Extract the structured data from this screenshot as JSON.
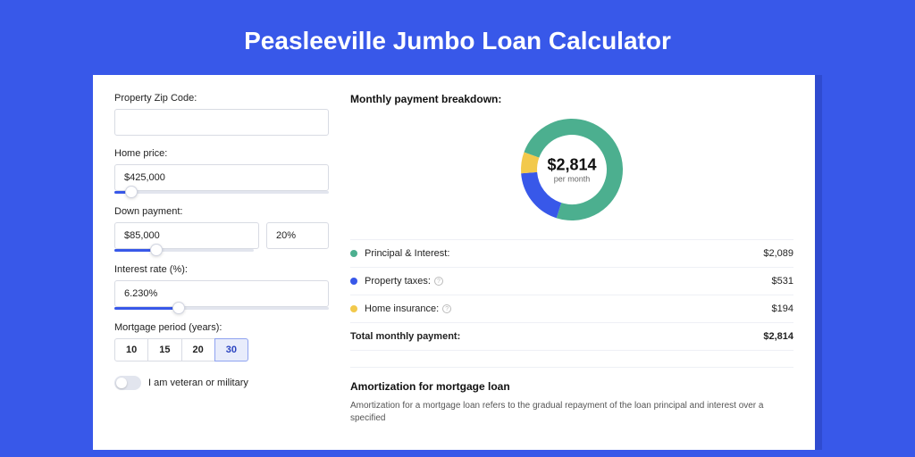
{
  "title": "Peasleeville Jumbo Loan Calculator",
  "colors": {
    "page_bg": "#3858e9",
    "card_shadow": "#2f4bd0",
    "accent": "#3858e9",
    "principal": "#4caf8f",
    "tax": "#3858e9",
    "insurance": "#f2c94c"
  },
  "form": {
    "zip": {
      "label": "Property Zip Code:",
      "value": ""
    },
    "home_price": {
      "label": "Home price:",
      "value": "$425,000",
      "slider_pct": 8
    },
    "down_payment": {
      "label": "Down payment:",
      "amount": "$85,000",
      "pct": "20%",
      "slider_pct": 20
    },
    "interest": {
      "label": "Interest rate (%):",
      "value": "6.230%",
      "slider_pct": 30
    },
    "period": {
      "label": "Mortgage period (years):",
      "options": [
        "10",
        "15",
        "20",
        "30"
      ],
      "selected": "30"
    },
    "veteran": {
      "label": "I am veteran or military",
      "checked": false
    }
  },
  "breakdown": {
    "title": "Monthly payment breakdown:",
    "center_value": "$2,814",
    "center_sub": "per month",
    "donut": {
      "radius": 48,
      "stroke": 18,
      "slices": [
        {
          "color": "#4caf8f",
          "pct": 74.2
        },
        {
          "color": "#3858e9",
          "pct": 18.9
        },
        {
          "color": "#f2c94c",
          "pct": 6.9
        }
      ]
    },
    "items": [
      {
        "label": "Principal & Interest:",
        "value": "$2,089",
        "color": "#4caf8f",
        "info": false
      },
      {
        "label": "Property taxes:",
        "value": "$531",
        "color": "#3858e9",
        "info": true
      },
      {
        "label": "Home insurance:",
        "value": "$194",
        "color": "#f2c94c",
        "info": true
      }
    ],
    "total": {
      "label": "Total monthly payment:",
      "value": "$2,814"
    }
  },
  "amortization": {
    "title": "Amortization for mortgage loan",
    "text": "Amortization for a mortgage loan refers to the gradual repayment of the loan principal and interest over a specified"
  }
}
